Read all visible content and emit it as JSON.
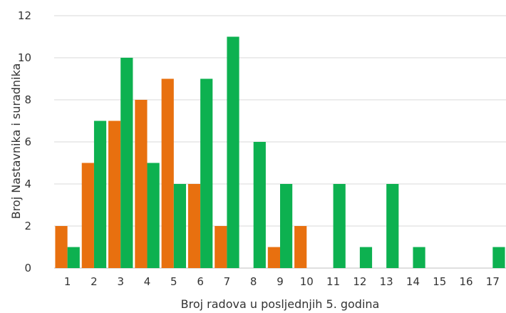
{
  "chart_data": {
    "type": "bar",
    "categories": [
      "1",
      "2",
      "3",
      "4",
      "5",
      "6",
      "7",
      "8",
      "9",
      "10",
      "11",
      "12",
      "13",
      "14",
      "15",
      "16",
      "17"
    ],
    "series": [
      {
        "color": "#E8700F",
        "values": [
          2,
          5,
          7,
          8,
          9,
          4,
          2,
          0,
          1,
          2,
          0,
          0,
          0,
          0,
          0,
          0,
          0
        ]
      },
      {
        "color": "#0DB150",
        "values": [
          1,
          7,
          10,
          5,
          4,
          9,
          11,
          6,
          4,
          0,
          4,
          1,
          4,
          1,
          0,
          0,
          1
        ]
      }
    ],
    "xlabel": "Broj radova u posljednjih 5. godina",
    "ylabel": "Broj Nastavnika i suradnika",
    "ylim": [
      0,
      12
    ],
    "yticks": [
      0,
      2,
      4,
      6,
      8,
      10,
      12
    ],
    "grid": true,
    "legend": "none"
  }
}
